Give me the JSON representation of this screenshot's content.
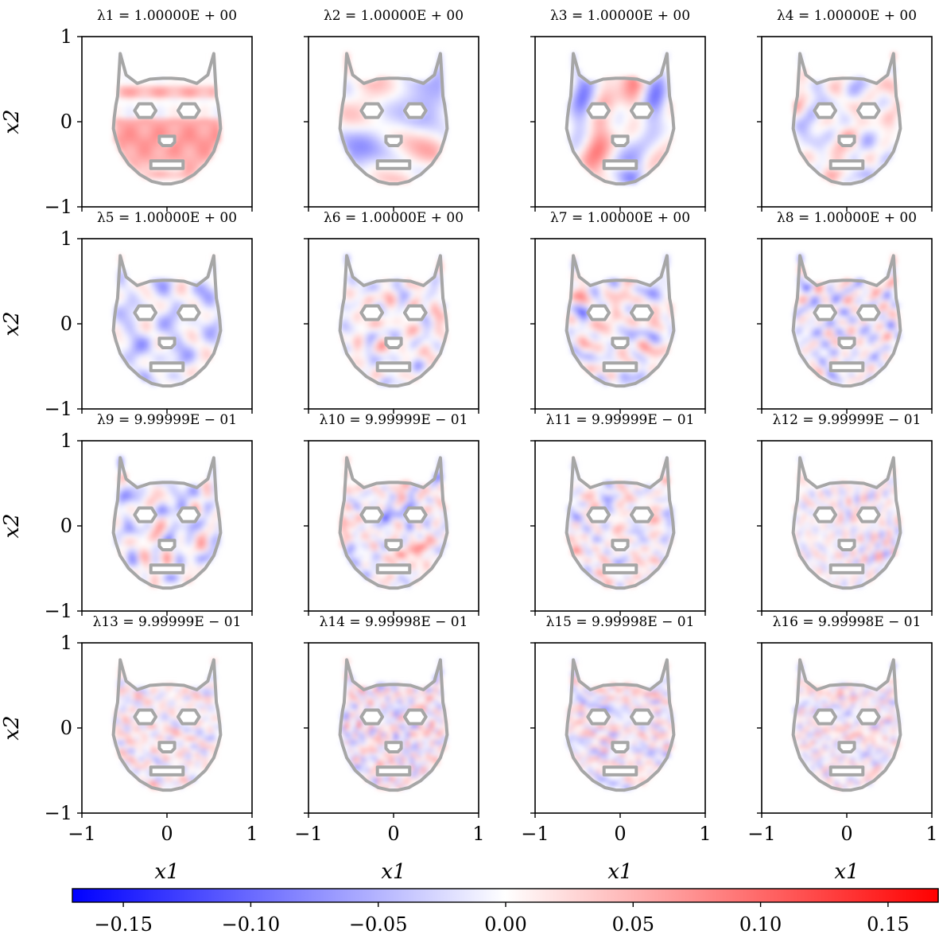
{
  "chart_data": {
    "type": "heatmap",
    "grid": {
      "rows": 4,
      "cols": 4
    },
    "panel_titles": [
      "λ1 = 1.00000E + 00",
      "λ2 = 1.00000E + 00",
      "λ3 = 1.00000E + 00",
      "λ4 = 1.00000E + 00",
      "λ5 = 1.00000E + 00",
      "λ6 = 1.00000E + 00",
      "λ7 = 1.00000E + 00",
      "λ8 = 1.00000E + 00",
      "λ9 = 9.99999E − 01",
      "λ10 = 9.99999E − 01",
      "λ11 = 9.99999E − 01",
      "λ12 = 9.99999E − 01",
      "λ13 = 9.99999E − 01",
      "λ14 = 9.99998E − 01",
      "λ15 = 9.99998E − 01",
      "λ16 = 9.99998E − 01"
    ],
    "eigenvalues": [
      1.0,
      1.0,
      1.0,
      1.0,
      1.0,
      1.0,
      1.0,
      1.0,
      0.999999,
      0.999999,
      0.999999,
      0.999999,
      0.999999,
      0.999998,
      0.999998,
      0.999998
    ],
    "xlabel": "x1",
    "ylabel": "x2",
    "xlim": [
      -1,
      1
    ],
    "ylim": [
      -1,
      1
    ],
    "xticks": [
      "−1",
      "0",
      "1"
    ],
    "yticks": [
      "1",
      "0",
      "−1"
    ],
    "colorbar": {
      "range": [
        -0.17,
        0.17
      ],
      "ticks": [
        -0.15,
        -0.1,
        -0.05,
        0.0,
        0.05,
        0.1,
        0.15
      ],
      "tick_labels": [
        "−0.15",
        "−0.10",
        "−0.05",
        "0.00",
        "0.05",
        "0.10",
        "0.15"
      ],
      "colormap": "bwr",
      "colors": {
        "low": "#0000ff",
        "mid": "#ffffff",
        "high": "#ff0000"
      }
    },
    "outline_color": "#a6a6a6",
    "grid_lines": false,
    "legend": "none"
  }
}
